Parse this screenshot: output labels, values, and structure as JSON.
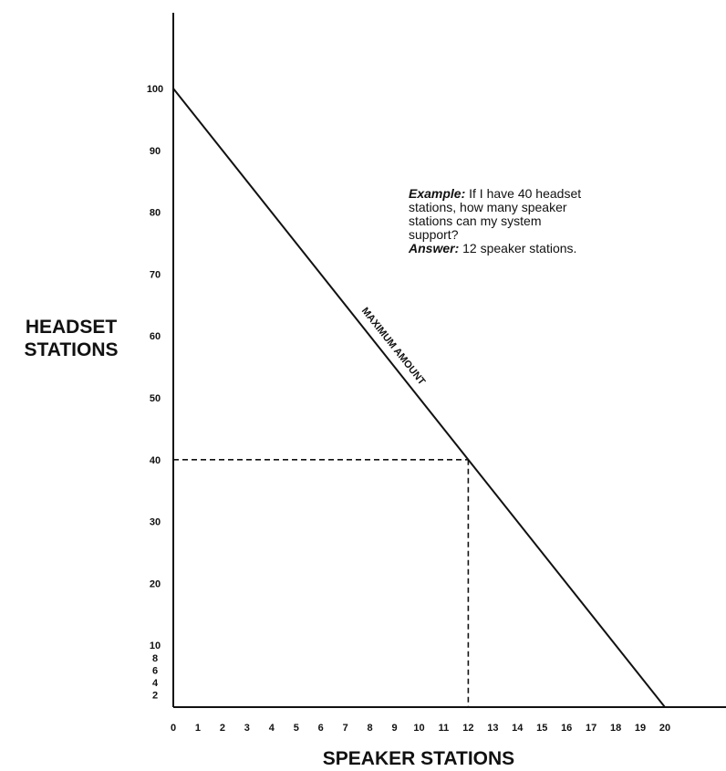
{
  "chart_data": {
    "type": "line",
    "xlabel": "SPEAKER STATIONS",
    "ylabel_line1": "HEADSET",
    "ylabel_line2": "STATIONS",
    "xlim": [
      0,
      20
    ],
    "ylim": [
      0,
      100
    ],
    "x_ticks": [
      0,
      1,
      2,
      3,
      4,
      5,
      6,
      7,
      8,
      9,
      10,
      11,
      12,
      13,
      14,
      15,
      16,
      17,
      18,
      19,
      20
    ],
    "y_ticks": [
      2,
      4,
      6,
      8,
      10,
      20,
      30,
      40,
      50,
      60,
      70,
      80,
      90,
      100
    ],
    "grid": false,
    "series": [
      {
        "name": "MAXIMUM AMOUNT",
        "x": [
          0,
          20
        ],
        "y": [
          100,
          0
        ]
      }
    ],
    "reference_point": {
      "x": 12,
      "y": 40
    },
    "annotation": {
      "example_label": "Example:",
      "example_text": " If I have 40 headset stations, how many speaker stations can my system support?",
      "answer_label": "Answer:",
      "answer_text": " 12 speaker stations."
    }
  }
}
